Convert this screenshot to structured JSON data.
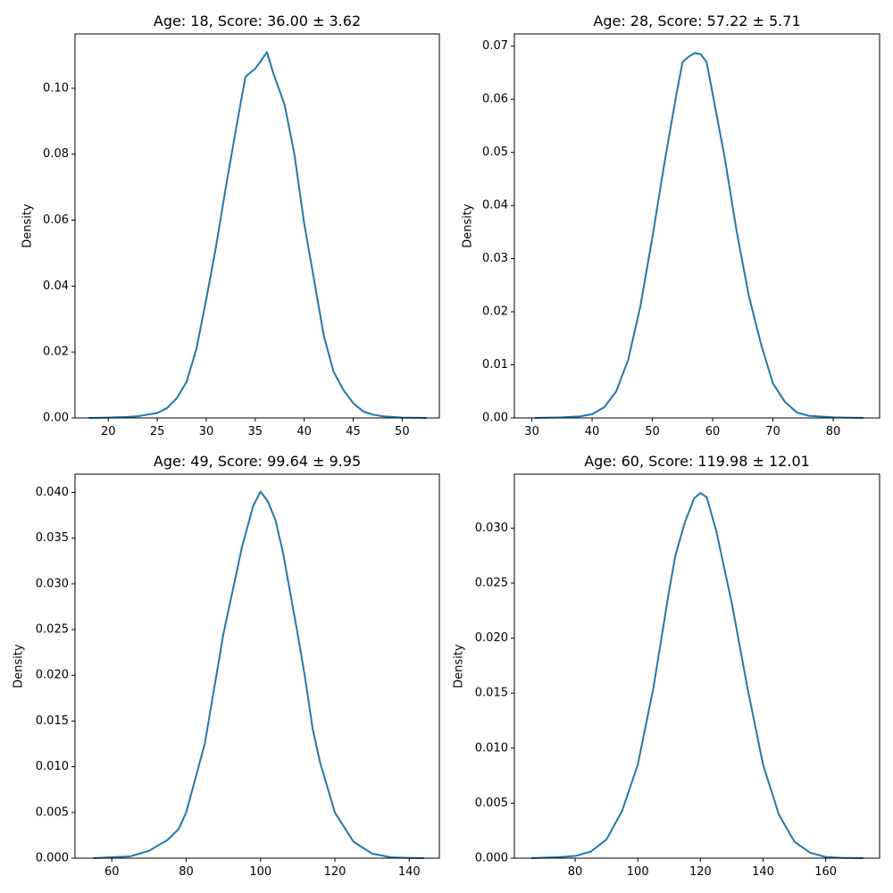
{
  "figure": {
    "background": "#ffffff"
  },
  "chart_data": [
    {
      "type": "line",
      "title": "Age: 18, Score: 36.00 ± 3.62",
      "xlabel": "",
      "ylabel": "Density",
      "xlim": [
        16.6,
        53.8
      ],
      "ylim": [
        0,
        0.1165
      ],
      "xticks": [
        20,
        25,
        30,
        35,
        40,
        45,
        50
      ],
      "yticks": [
        0.0,
        0.02,
        0.04,
        0.06,
        0.08,
        0.1
      ],
      "ytick_labels": [
        "0.00",
        "0.02",
        "0.04",
        "0.06",
        "0.08",
        "0.10"
      ],
      "grid": false,
      "series": [
        {
          "color": "#1f77b4",
          "x": [
            18,
            20,
            22,
            23,
            24,
            25,
            26,
            27,
            28,
            29,
            30,
            31,
            32,
            33,
            34,
            35,
            35.5,
            36.2,
            36.8,
            38,
            39,
            40,
            41,
            42,
            43,
            44,
            45,
            46,
            47,
            48,
            50,
            52.5
          ],
          "y": [
            0,
            0.0001,
            0.0003,
            0.0005,
            0.001,
            0.0015,
            0.003,
            0.006,
            0.011,
            0.021,
            0.036,
            0.052,
            0.07,
            0.087,
            0.1035,
            0.106,
            0.108,
            0.111,
            0.105,
            0.095,
            0.08,
            0.059,
            0.042,
            0.025,
            0.014,
            0.0085,
            0.0045,
            0.002,
            0.001,
            0.0005,
            0.0001,
            0
          ]
        }
      ]
    },
    {
      "type": "line",
      "title": "Age: 28, Score: 57.22 ± 5.71",
      "xlabel": "",
      "ylabel": "Density",
      "xlim": [
        27.1,
        87.7
      ],
      "ylim": [
        0,
        0.0723
      ],
      "xticks": [
        30,
        40,
        50,
        60,
        70,
        80
      ],
      "yticks": [
        0.0,
        0.01,
        0.02,
        0.03,
        0.04,
        0.05,
        0.06,
        0.07
      ],
      "ytick_labels": [
        "0.00",
        "0.01",
        "0.02",
        "0.03",
        "0.04",
        "0.05",
        "0.06",
        "0.07"
      ],
      "grid": false,
      "series": [
        {
          "color": "#1f77b4",
          "x": [
            30.5,
            35,
            38,
            40,
            42,
            44,
            46,
            48,
            50,
            52,
            54,
            55,
            56,
            57,
            58,
            59,
            60,
            62,
            64,
            66,
            68,
            70,
            72,
            74,
            76,
            80,
            85
          ],
          "y": [
            0,
            0.0001,
            0.0003,
            0.0007,
            0.002,
            0.005,
            0.011,
            0.021,
            0.034,
            0.048,
            0.061,
            0.067,
            0.068,
            0.0687,
            0.0685,
            0.067,
            0.061,
            0.049,
            0.035,
            0.023,
            0.014,
            0.0065,
            0.003,
            0.001,
            0.0004,
            0.0001,
            0
          ]
        }
      ]
    },
    {
      "type": "line",
      "title": "Age: 49, Score: 99.64 ± 9.95",
      "xlabel": "",
      "ylabel": "Density",
      "xlim": [
        50.1,
        148.1
      ],
      "ylim": [
        0,
        0.042
      ],
      "xticks": [
        60,
        80,
        100,
        120,
        140
      ],
      "yticks": [
        0.0,
        0.005,
        0.01,
        0.015,
        0.02,
        0.025,
        0.03,
        0.035,
        0.04
      ],
      "ytick_labels": [
        "0.000",
        "0.005",
        "0.010",
        "0.015",
        "0.020",
        "0.025",
        "0.030",
        "0.035",
        "0.040"
      ],
      "grid": false,
      "series": [
        {
          "color": "#1f77b4",
          "x": [
            55,
            60,
            65,
            70,
            75,
            78,
            80,
            85,
            90,
            95,
            98,
            100,
            102,
            104,
            106,
            108,
            110,
            112,
            114,
            116,
            120,
            125,
            130,
            135,
            140,
            144
          ],
          "y": [
            0,
            0.0001,
            0.0002,
            0.0008,
            0.002,
            0.0032,
            0.005,
            0.0125,
            0.0245,
            0.034,
            0.0385,
            0.0401,
            0.039,
            0.037,
            0.0335,
            0.029,
            0.0245,
            0.0197,
            0.0142,
            0.0105,
            0.005,
            0.0018,
            0.0005,
            0.0001,
            3e-05,
            0
          ]
        }
      ]
    },
    {
      "type": "line",
      "title": "Age: 60, Score: 119.98 ± 12.01",
      "xlabel": "",
      "ylabel": "Density",
      "xlim": [
        60.6,
        177.2
      ],
      "ylim": [
        0,
        0.0349
      ],
      "xticks": [
        80,
        100,
        120,
        140,
        160
      ],
      "yticks": [
        0.0,
        0.005,
        0.01,
        0.015,
        0.02,
        0.025,
        0.03
      ],
      "ytick_labels": [
        "0.000",
        "0.005",
        "0.010",
        "0.015",
        "0.020",
        "0.025",
        "0.030"
      ],
      "grid": false,
      "series": [
        {
          "color": "#1f77b4",
          "x": [
            66,
            75,
            80,
            85,
            90,
            95,
            100,
            105,
            110,
            112,
            115,
            118,
            120,
            122,
            125,
            130,
            135,
            140,
            145,
            150,
            155,
            160,
            165,
            172
          ],
          "y": [
            0,
            0.0001,
            0.0002,
            0.0006,
            0.0017,
            0.0043,
            0.0085,
            0.0155,
            0.0243,
            0.0275,
            0.0305,
            0.0327,
            0.0332,
            0.0328,
            0.0298,
            0.0232,
            0.0155,
            0.0085,
            0.004,
            0.0015,
            0.0005,
            0.0001,
            3e-05,
            0
          ]
        }
      ]
    }
  ]
}
